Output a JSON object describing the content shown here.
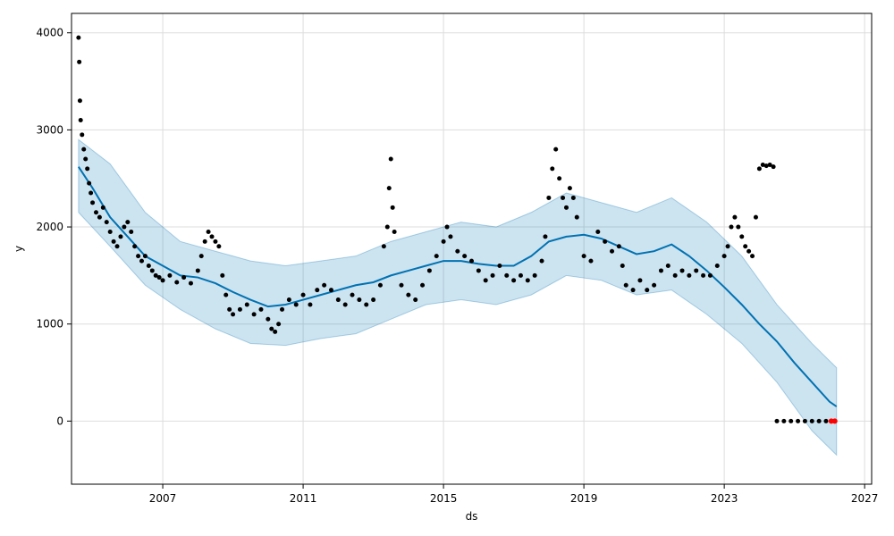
{
  "chart_data": {
    "type": "scatter",
    "title": "",
    "xlabel": "ds",
    "ylabel": "y",
    "xlim": [
      2004.4,
      2027.2
    ],
    "ylim": [
      -650,
      4200
    ],
    "grid": true,
    "x_ticks": [
      {
        "value": 2007,
        "label": "2007"
      },
      {
        "value": 2011,
        "label": "2011"
      },
      {
        "value": 2015,
        "label": "2015"
      },
      {
        "value": 2019,
        "label": "2019"
      },
      {
        "value": 2023,
        "label": "2023"
      },
      {
        "value": 2027,
        "label": "2027"
      }
    ],
    "y_ticks": [
      {
        "value": 0,
        "label": "0"
      },
      {
        "value": 1000,
        "label": "1000"
      },
      {
        "value": 2000,
        "label": "2000"
      },
      {
        "value": 3000,
        "label": "3000"
      },
      {
        "value": 4000,
        "label": "4000"
      }
    ],
    "colors": {
      "observed": "#000000",
      "forecast": "#0072B2",
      "interval": "#0072B2",
      "highlight": "#ff0000",
      "grid": "#dddddd"
    },
    "series": [
      {
        "kind": "observed_points",
        "points": [
          [
            2004.6,
            3950
          ],
          [
            2004.62,
            3700
          ],
          [
            2004.64,
            3300
          ],
          [
            2004.66,
            3100
          ],
          [
            2004.7,
            2950
          ],
          [
            2004.75,
            2800
          ],
          [
            2004.8,
            2700
          ],
          [
            2004.85,
            2600
          ],
          [
            2004.9,
            2450
          ],
          [
            2004.95,
            2350
          ],
          [
            2005.0,
            2250
          ],
          [
            2005.1,
            2150
          ],
          [
            2005.2,
            2100
          ],
          [
            2005.3,
            2200
          ],
          [
            2005.4,
            2050
          ],
          [
            2005.5,
            1950
          ],
          [
            2005.6,
            1850
          ],
          [
            2005.7,
            1800
          ],
          [
            2005.8,
            1900
          ],
          [
            2005.9,
            2000
          ],
          [
            2006.0,
            2050
          ],
          [
            2006.1,
            1950
          ],
          [
            2006.2,
            1800
          ],
          [
            2006.3,
            1700
          ],
          [
            2006.4,
            1650
          ],
          [
            2006.5,
            1700
          ],
          [
            2006.6,
            1600
          ],
          [
            2006.7,
            1550
          ],
          [
            2006.8,
            1500
          ],
          [
            2006.9,
            1480
          ],
          [
            2007.0,
            1450
          ],
          [
            2007.2,
            1500
          ],
          [
            2007.4,
            1430
          ],
          [
            2007.6,
            1480
          ],
          [
            2007.8,
            1420
          ],
          [
            2008.0,
            1550
          ],
          [
            2008.1,
            1700
          ],
          [
            2008.2,
            1850
          ],
          [
            2008.3,
            1950
          ],
          [
            2008.4,
            1900
          ],
          [
            2008.5,
            1850
          ],
          [
            2008.6,
            1800
          ],
          [
            2008.7,
            1500
          ],
          [
            2008.8,
            1300
          ],
          [
            2008.9,
            1150
          ],
          [
            2009.0,
            1100
          ],
          [
            2009.2,
            1150
          ],
          [
            2009.4,
            1200
          ],
          [
            2009.6,
            1100
          ],
          [
            2009.8,
            1150
          ],
          [
            2010.0,
            1050
          ],
          [
            2010.1,
            950
          ],
          [
            2010.2,
            920
          ],
          [
            2010.3,
            1000
          ],
          [
            2010.4,
            1150
          ],
          [
            2010.6,
            1250
          ],
          [
            2010.8,
            1200
          ],
          [
            2011.0,
            1300
          ],
          [
            2011.2,
            1200
          ],
          [
            2011.4,
            1350
          ],
          [
            2011.6,
            1400
          ],
          [
            2011.8,
            1350
          ],
          [
            2012.0,
            1250
          ],
          [
            2012.2,
            1200
          ],
          [
            2012.4,
            1300
          ],
          [
            2012.6,
            1250
          ],
          [
            2012.8,
            1200
          ],
          [
            2013.0,
            1250
          ],
          [
            2013.2,
            1400
          ],
          [
            2013.3,
            1800
          ],
          [
            2013.4,
            2000
          ],
          [
            2013.45,
            2400
          ],
          [
            2013.5,
            2700
          ],
          [
            2013.55,
            2200
          ],
          [
            2013.6,
            1950
          ],
          [
            2013.8,
            1400
          ],
          [
            2014.0,
            1300
          ],
          [
            2014.2,
            1250
          ],
          [
            2014.4,
            1400
          ],
          [
            2014.6,
            1550
          ],
          [
            2014.8,
            1700
          ],
          [
            2015.0,
            1850
          ],
          [
            2015.1,
            2000
          ],
          [
            2015.2,
            1900
          ],
          [
            2015.4,
            1750
          ],
          [
            2015.6,
            1700
          ],
          [
            2015.8,
            1650
          ],
          [
            2016.0,
            1550
          ],
          [
            2016.2,
            1450
          ],
          [
            2016.4,
            1500
          ],
          [
            2016.6,
            1600
          ],
          [
            2016.8,
            1500
          ],
          [
            2017.0,
            1450
          ],
          [
            2017.2,
            1500
          ],
          [
            2017.4,
            1450
          ],
          [
            2017.6,
            1500
          ],
          [
            2017.8,
            1650
          ],
          [
            2017.9,
            1900
          ],
          [
            2018.0,
            2300
          ],
          [
            2018.1,
            2600
          ],
          [
            2018.2,
            2800
          ],
          [
            2018.3,
            2500
          ],
          [
            2018.4,
            2300
          ],
          [
            2018.5,
            2200
          ],
          [
            2018.6,
            2400
          ],
          [
            2018.7,
            2300
          ],
          [
            2018.8,
            2100
          ],
          [
            2019.0,
            1700
          ],
          [
            2019.2,
            1650
          ],
          [
            2019.4,
            1950
          ],
          [
            2019.6,
            1850
          ],
          [
            2019.8,
            1750
          ],
          [
            2020.0,
            1800
          ],
          [
            2020.1,
            1600
          ],
          [
            2020.2,
            1400
          ],
          [
            2020.4,
            1350
          ],
          [
            2020.6,
            1450
          ],
          [
            2020.8,
            1350
          ],
          [
            2021.0,
            1400
          ],
          [
            2021.2,
            1550
          ],
          [
            2021.4,
            1600
          ],
          [
            2021.6,
            1500
          ],
          [
            2021.8,
            1550
          ],
          [
            2022.0,
            1500
          ],
          [
            2022.2,
            1550
          ],
          [
            2022.4,
            1500
          ],
          [
            2022.6,
            1500
          ],
          [
            2022.8,
            1600
          ],
          [
            2023.0,
            1700
          ],
          [
            2023.1,
            1800
          ],
          [
            2023.2,
            2000
          ],
          [
            2023.3,
            2100
          ],
          [
            2023.4,
            2000
          ],
          [
            2023.5,
            1900
          ],
          [
            2023.6,
            1800
          ],
          [
            2023.7,
            1750
          ],
          [
            2023.8,
            1700
          ],
          [
            2023.9,
            2100
          ],
          [
            2024.0,
            2600
          ],
          [
            2024.1,
            2640
          ],
          [
            2024.2,
            2630
          ],
          [
            2024.3,
            2640
          ],
          [
            2024.4,
            2620
          ],
          [
            2024.5,
            0
          ],
          [
            2024.7,
            0
          ],
          [
            2024.9,
            0
          ],
          [
            2025.1,
            0
          ],
          [
            2025.3,
            0
          ],
          [
            2025.5,
            0
          ],
          [
            2025.7,
            0
          ],
          [
            2025.9,
            0
          ]
        ]
      },
      {
        "kind": "forecast_line",
        "points": [
          [
            2004.6,
            2620
          ],
          [
            2005.0,
            2400
          ],
          [
            2005.5,
            2100
          ],
          [
            2006.0,
            1900
          ],
          [
            2006.5,
            1700
          ],
          [
            2007.0,
            1600
          ],
          [
            2007.5,
            1500
          ],
          [
            2008.0,
            1480
          ],
          [
            2008.5,
            1420
          ],
          [
            2009.0,
            1330
          ],
          [
            2009.5,
            1250
          ],
          [
            2010.0,
            1180
          ],
          [
            2010.5,
            1200
          ],
          [
            2011.0,
            1250
          ],
          [
            2011.5,
            1300
          ],
          [
            2012.0,
            1350
          ],
          [
            2012.5,
            1400
          ],
          [
            2013.0,
            1430
          ],
          [
            2013.5,
            1500
          ],
          [
            2014.0,
            1550
          ],
          [
            2014.5,
            1600
          ],
          [
            2015.0,
            1650
          ],
          [
            2015.5,
            1650
          ],
          [
            2016.0,
            1620
          ],
          [
            2016.5,
            1600
          ],
          [
            2017.0,
            1600
          ],
          [
            2017.5,
            1700
          ],
          [
            2018.0,
            1850
          ],
          [
            2018.5,
            1900
          ],
          [
            2019.0,
            1920
          ],
          [
            2019.5,
            1880
          ],
          [
            2020.0,
            1800
          ],
          [
            2020.5,
            1720
          ],
          [
            2021.0,
            1750
          ],
          [
            2021.5,
            1820
          ],
          [
            2022.0,
            1700
          ],
          [
            2022.5,
            1550
          ],
          [
            2023.0,
            1380
          ],
          [
            2023.5,
            1200
          ],
          [
            2024.0,
            1000
          ],
          [
            2024.5,
            820
          ],
          [
            2025.0,
            600
          ],
          [
            2025.5,
            400
          ],
          [
            2026.0,
            200
          ],
          [
            2026.2,
            150
          ]
        ]
      },
      {
        "kind": "interval_band",
        "upper": [
          [
            2004.6,
            2900
          ],
          [
            2005.5,
            2650
          ],
          [
            2006.5,
            2150
          ],
          [
            2007.5,
            1850
          ],
          [
            2008.5,
            1750
          ],
          [
            2009.5,
            1650
          ],
          [
            2010.5,
            1600
          ],
          [
            2011.5,
            1650
          ],
          [
            2012.5,
            1700
          ],
          [
            2013.5,
            1850
          ],
          [
            2014.5,
            1950
          ],
          [
            2015.5,
            2050
          ],
          [
            2016.5,
            2000
          ],
          [
            2017.5,
            2150
          ],
          [
            2018.5,
            2350
          ],
          [
            2019.5,
            2250
          ],
          [
            2020.5,
            2150
          ],
          [
            2021.5,
            2300
          ],
          [
            2022.5,
            2050
          ],
          [
            2023.5,
            1700
          ],
          [
            2024.5,
            1200
          ],
          [
            2025.5,
            800
          ],
          [
            2026.2,
            550
          ]
        ],
        "lower": [
          [
            2004.6,
            2150
          ],
          [
            2005.5,
            1800
          ],
          [
            2006.5,
            1400
          ],
          [
            2007.5,
            1150
          ],
          [
            2008.5,
            950
          ],
          [
            2009.5,
            800
          ],
          [
            2010.5,
            780
          ],
          [
            2011.5,
            850
          ],
          [
            2012.5,
            900
          ],
          [
            2013.5,
            1050
          ],
          [
            2014.5,
            1200
          ],
          [
            2015.5,
            1250
          ],
          [
            2016.5,
            1200
          ],
          [
            2017.5,
            1300
          ],
          [
            2018.5,
            1500
          ],
          [
            2019.5,
            1450
          ],
          [
            2020.5,
            1300
          ],
          [
            2021.5,
            1350
          ],
          [
            2022.5,
            1100
          ],
          [
            2023.5,
            800
          ],
          [
            2024.5,
            400
          ],
          [
            2025.5,
            -100
          ],
          [
            2026.2,
            -350
          ]
        ]
      },
      {
        "kind": "highlight_points",
        "points": [
          [
            2026.05,
            0
          ],
          [
            2026.15,
            0
          ]
        ]
      }
    ]
  }
}
